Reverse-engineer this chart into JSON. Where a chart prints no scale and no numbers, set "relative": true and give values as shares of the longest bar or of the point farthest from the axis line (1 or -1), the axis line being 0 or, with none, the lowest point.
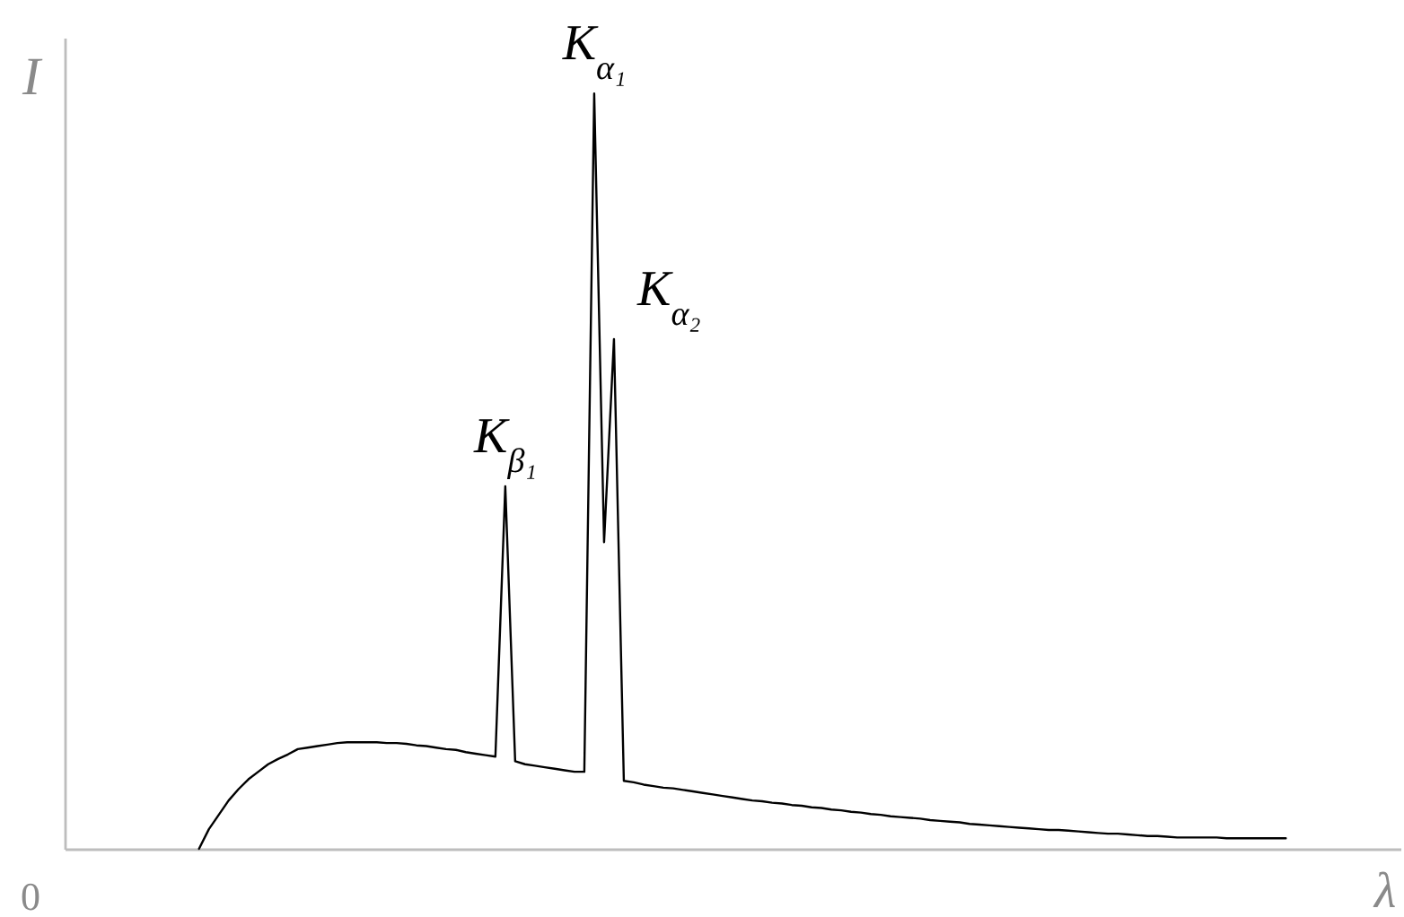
{
  "chart_data": {
    "type": "line",
    "xlabel": "λ",
    "ylabel": "I",
    "relative": true,
    "categories": [
      null,
      null,
      null,
      null,
      null,
      null,
      null,
      null,
      null,
      null,
      null,
      null,
      null,
      null,
      null,
      null,
      null,
      null,
      null,
      null,
      null,
      null,
      null,
      null,
      null,
      null,
      null,
      null,
      null,
      null,
      null,
      null,
      null,
      null,
      null,
      null,
      null,
      null,
      null,
      null,
      null,
      null,
      null,
      null,
      null,
      null,
      null,
      null,
      null,
      null,
      null,
      null,
      null,
      null,
      null,
      null,
      null,
      null,
      null,
      null,
      null,
      null,
      null,
      null,
      null,
      null,
      null,
      null,
      null,
      null,
      null,
      null,
      null,
      null,
      null,
      null,
      null,
      null,
      null,
      null,
      null,
      null,
      null,
      null,
      null,
      null,
      null,
      null,
      null,
      null,
      null,
      null,
      null,
      null,
      null,
      null,
      null,
      null,
      null,
      null,
      null,
      null,
      null,
      null,
      null,
      null,
      null,
      null,
      null,
      null,
      null,
      null,
      null,
      null,
      null,
      null,
      null,
      null,
      null,
      null,
      null,
      null,
      null,
      null,
      null,
      null,
      null,
      null,
      null,
      null,
      null,
      null,
      null,
      null,
      null
    ],
    "series": [
      {
        "color": "#000000",
        "values": [
          null,
          null,
          null,
          null,
          null,
          null,
          null,
          null,
          null,
          null,
          null,
          null,
          null,
          0,
          0.026,
          0.045,
          0.064,
          0.079,
          0.092,
          0.102,
          0.112,
          0.119,
          0.125,
          0.132,
          0.134,
          0.136,
          0.138,
          0.14,
          0.141,
          0.141,
          0.141,
          0.141,
          0.14,
          0.14,
          0.139,
          0.137,
          0.136,
          0.134,
          0.132,
          0.131,
          0.128,
          0.126,
          0.124,
          0.122,
          0.48,
          0.116,
          0.112,
          0.11,
          0.108,
          0.106,
          0.104,
          0.102,
          0.102,
          1,
          0.406,
          0.675,
          0.09,
          0.088,
          0.085,
          0.083,
          0.081,
          0.08,
          0.078,
          0.076,
          0.074,
          0.072,
          0.07,
          0.068,
          0.066,
          0.064,
          0.063,
          0.061,
          0.06,
          0.058,
          0.057,
          0.055,
          0.054,
          0.052,
          0.051,
          0.049,
          0.048,
          0.046,
          0.045,
          0.043,
          0.042,
          0.041,
          0.04,
          0.038,
          0.037,
          0.036,
          0.035,
          0.033,
          0.032,
          0.031,
          0.03,
          0.029,
          0.028,
          0.027,
          0.026,
          0.025,
          0.025,
          0.024,
          0.023,
          0.022,
          0.021,
          0.02,
          0.02,
          0.019,
          0.018,
          0.017,
          0.017,
          0.016,
          0.015,
          0.015,
          0.015,
          0.015,
          0.015,
          0.014,
          0.014,
          0.014,
          0.014,
          0.014,
          0.014,
          0.014,
          null,
          null,
          null,
          null,
          null,
          null,
          null,
          null,
          null,
          null,
          null
        ]
      }
    ],
    "annotations": [
      {
        "text": "K$_{α₁}$",
        "y": 1
      },
      {
        "text": "K$_{β₁}$",
        "y": 0.48
      },
      "K$_{α₂}$",
      "0"
    ]
  }
}
